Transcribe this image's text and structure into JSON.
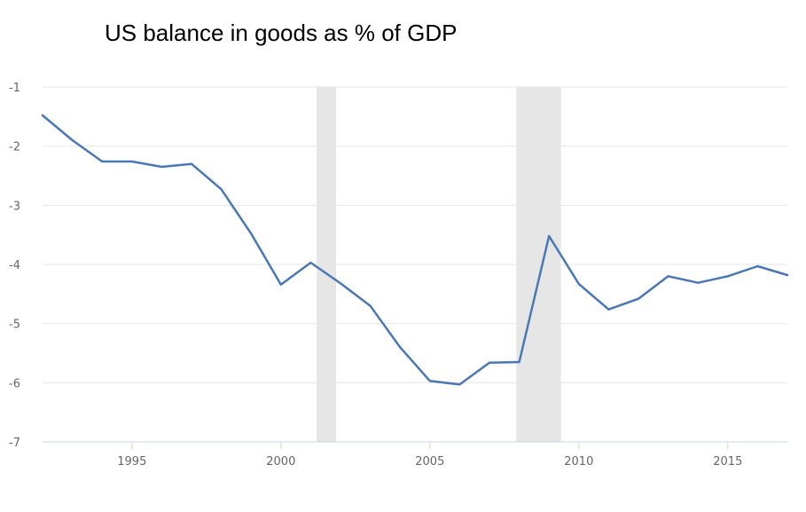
{
  "chart_data": {
    "type": "line",
    "title": "US balance in goods as % of GDP",
    "xlabel": "",
    "ylabel": "",
    "xlim": [
      1992,
      2017
    ],
    "ylim": [
      -7,
      -1
    ],
    "x_ticks": [
      1995,
      2000,
      2005,
      2010,
      2015
    ],
    "y_ticks": [
      -1,
      -2,
      -3,
      -4,
      -5,
      -6,
      -7
    ],
    "grid": true,
    "recessions": [
      [
        2001.2,
        2001.85
      ],
      [
        2007.9,
        2009.4
      ]
    ],
    "series": [
      {
        "name": "Balance in goods",
        "color": "#4a78b5",
        "x": [
          1992,
          1993,
          1994,
          1995,
          1996,
          1997,
          1998,
          1999,
          2000,
          2001,
          2002,
          2003,
          2004,
          2005,
          2006,
          2007,
          2008,
          2009,
          2010,
          2011,
          2012,
          2013,
          2014,
          2015,
          2016,
          2017
        ],
        "values": [
          -1.48,
          -1.9,
          -2.26,
          -2.26,
          -2.35,
          -2.3,
          -2.73,
          -3.48,
          -4.34,
          -3.97,
          -4.32,
          -4.7,
          -5.4,
          -5.97,
          -6.03,
          -5.66,
          -5.65,
          -3.52,
          -4.33,
          -4.76,
          -4.58,
          -4.2,
          -4.31,
          -4.2,
          -4.03,
          -4.18
        ]
      }
    ],
    "colors": {
      "recession": "#e6e6e6",
      "grid": "#e6e6e6",
      "axis": "#ccd6eb"
    }
  }
}
